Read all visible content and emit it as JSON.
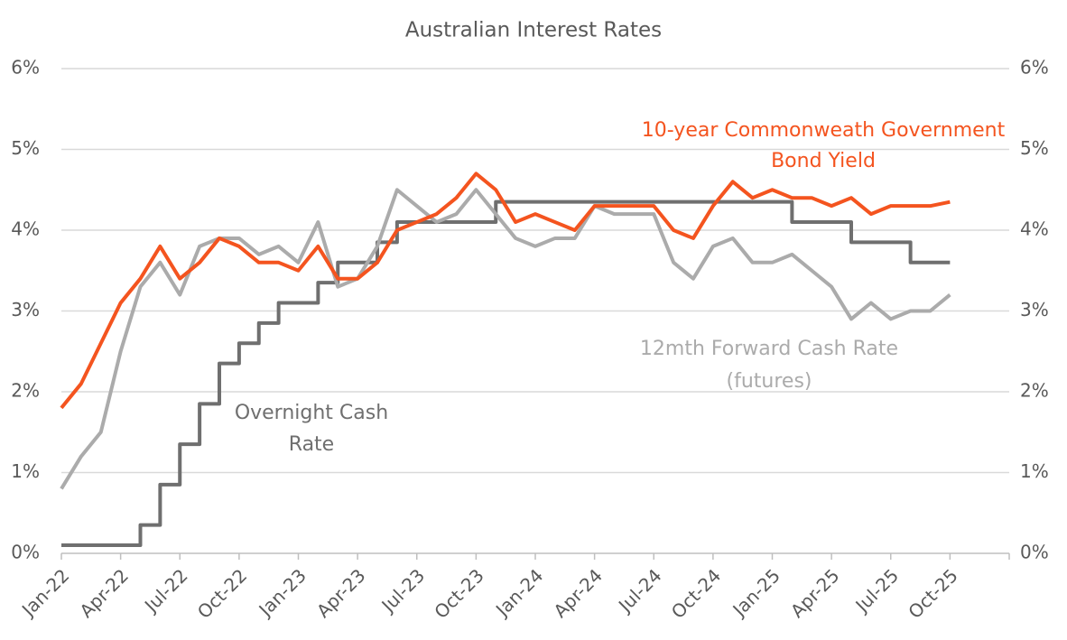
{
  "chart_data": {
    "type": "line",
    "title": "Australian Interest Rates",
    "categories": [
      "Jan-22",
      null,
      null,
      "Apr-22",
      null,
      null,
      "Jul-22",
      null,
      null,
      "Oct-22",
      null,
      null,
      "Jan-23",
      null,
      null,
      "Apr-23",
      null,
      null,
      "Jul-23",
      null,
      null,
      "Oct-23",
      null,
      null,
      "Jan-24",
      null,
      null,
      "Apr-24",
      null,
      null,
      "Jul-24",
      null,
      null,
      "Oct-24",
      null,
      null,
      "Jan-25",
      null,
      null,
      "Apr-25",
      null,
      null,
      "Jul-25",
      null,
      null,
      "Oct-25",
      null,
      null,
      null
    ],
    "series": [
      {
        "color": "#6f6f6f",
        "values": [
          0.1,
          0.1,
          0.1,
          0.1,
          0.35,
          0.85,
          1.35,
          1.85,
          2.35,
          2.6,
          2.85,
          3.1,
          3.1,
          3.35,
          3.6,
          3.6,
          3.85,
          4.1,
          4.1,
          4.1,
          4.1,
          4.1,
          4.35,
          4.35,
          4.35,
          4.35,
          4.35,
          4.35,
          4.35,
          4.35,
          4.35,
          4.35,
          4.35,
          4.35,
          4.35,
          4.35,
          4.35,
          4.1,
          4.1,
          4.1,
          3.85,
          3.85,
          3.85,
          3.6,
          3.6,
          3.6,
          null,
          null,
          null
        ]
      },
      {
        "color": "#ababab",
        "values": [
          0.8,
          1.2,
          1.5,
          2.5,
          3.3,
          3.6,
          3.2,
          3.8,
          3.9,
          3.9,
          3.7,
          3.8,
          3.6,
          4.1,
          3.3,
          3.4,
          3.8,
          4.5,
          4.3,
          4.1,
          4.2,
          4.5,
          4.2,
          3.9,
          3.8,
          3.9,
          3.9,
          4.3,
          4.2,
          4.2,
          4.2,
          3.6,
          3.4,
          3.8,
          3.9,
          3.6,
          3.6,
          3.7,
          3.5,
          3.3,
          2.9,
          3.1,
          2.9,
          3.0,
          3.0,
          3.2,
          null,
          null,
          null
        ]
      },
      {
        "color": "#f4541f",
        "values": [
          1.8,
          2.1,
          2.6,
          3.1,
          3.4,
          3.8,
          3.4,
          3.6,
          3.9,
          3.8,
          3.6,
          3.6,
          3.5,
          3.8,
          3.4,
          3.4,
          3.6,
          4.0,
          4.1,
          4.2,
          4.4,
          4.7,
          4.5,
          4.1,
          4.2,
          4.1,
          4.0,
          4.3,
          4.3,
          4.3,
          4.3,
          4.0,
          3.9,
          4.3,
          4.6,
          4.4,
          4.5,
          4.4,
          4.4,
          4.3,
          4.4,
          4.2,
          4.3,
          4.3,
          4.3,
          4.35,
          null,
          null,
          null
        ]
      }
    ],
    "ylim": [
      0,
      6
    ],
    "yticks": [
      {
        "value": 0,
        "label": "0%"
      },
      {
        "value": 1,
        "label": "1%"
      },
      {
        "value": 2,
        "label": "2%"
      },
      {
        "value": 3,
        "label": "3%"
      },
      {
        "value": 4,
        "label": "4%"
      },
      {
        "value": 5,
        "label": "5%"
      },
      {
        "value": 6,
        "label": "6%"
      }
    ],
    "y2lim": [
      0,
      6
    ],
    "y2ticks": [
      {
        "value": 0,
        "label": "0%"
      },
      {
        "value": 1,
        "label": "1%"
      },
      {
        "value": 2,
        "label": "2%"
      },
      {
        "value": 3,
        "label": "3%"
      },
      {
        "value": 4,
        "label": "4%"
      },
      {
        "value": 5,
        "label": "5%"
      },
      {
        "value": 6,
        "label": "6%"
      }
    ],
    "grid": true,
    "annotations": [
      {
        "text": "10-year Commonweath Government",
        "color": "#f4541f"
      },
      {
        "text": "Bond Yield",
        "color": "#f4541f"
      },
      {
        "text": "12mth Forward Cash Rate",
        "color": "#ababab"
      },
      {
        "text": "(futures)",
        "color": "#ababab"
      },
      {
        "text": "Overnight Cash",
        "color": "#6f6f6f"
      },
      {
        "text": "Rate",
        "color": "#6f6f6f"
      }
    ]
  }
}
